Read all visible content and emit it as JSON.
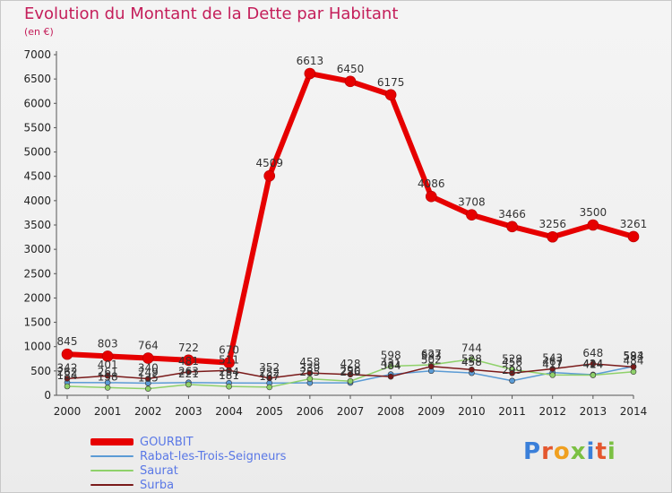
{
  "title": "Evolution du Montant de la Dette par Habitant",
  "unit": "(en €)",
  "logo": {
    "letters": [
      "P",
      "r",
      "o",
      "x",
      "i",
      "t",
      "i"
    ],
    "colors": [
      "#3a7fd9",
      "#e4572e",
      "#f0a020",
      "#7bc043",
      "#3a7fd9",
      "#e4572e",
      "#7bc043"
    ]
  },
  "chart_data": {
    "type": "line",
    "title": "Evolution du Montant de la Dette par Habitant",
    "ylabel": "(en €)",
    "x": [
      "2000",
      "2001",
      "2002",
      "2003",
      "2004",
      "2005",
      "2006",
      "2007",
      "2008",
      "2009",
      "2010",
      "2011",
      "2012",
      "2013",
      "2014"
    ],
    "ylim": [
      0,
      7000
    ],
    "yticks": [
      0,
      500,
      1000,
      1500,
      2000,
      2500,
      3000,
      3500,
      4000,
      4500,
      5000,
      5500,
      6000,
      6500,
      7000
    ],
    "grid": false,
    "legend": "bottom-left",
    "series": [
      {
        "name": "GOURBIT",
        "color": "#e60000",
        "width": 6,
        "marker": 6,
        "values": [
          845,
          803,
          764,
          722,
          670,
          4509,
          6613,
          6450,
          6175,
          4086,
          3708,
          3466,
          3256,
          3500,
          3261
        ],
        "labels": [
          "845",
          "803",
          "764",
          "722",
          "670",
          "4509",
          "6613",
          "6450",
          "6175",
          "4086",
          "3708",
          "3466",
          "3256",
          "3500",
          "3261"
        ]
      },
      {
        "name": "Rabat-les-Trois-Seigneurs",
        "color": "#5b9bd5",
        "width": 1.5,
        "marker": 3,
        "values": [
          262,
          261,
          249,
          263,
          254,
          252,
          255,
          256,
          431,
          502,
          458,
          299,
          467,
          424,
          594
        ],
        "labels": [
          "262",
          "261",
          "249",
          "263",
          "254",
          "252",
          "255",
          "256",
          "431",
          "502",
          "458",
          "299",
          "467",
          "424",
          "594"
        ]
      },
      {
        "name": "Saurat",
        "color": "#8fd16a",
        "width": 1.5,
        "marker": 3,
        "values": [
          184,
          158,
          135,
          221,
          181,
          167,
          339,
          290,
          598,
          627,
          744,
          529,
          417,
          414,
          484
        ],
        "labels": [
          "184",
          "158",
          "135",
          "221",
          "181",
          "167",
          "339",
          "290",
          "598",
          "627",
          "744",
          "529",
          "417",
          "414",
          "484"
        ]
      },
      {
        "name": "Surba",
        "color": "#7a1a1a",
        "width": 1.5,
        "marker": 3,
        "values": [
          342,
          401,
          340,
          481,
          511,
          352,
          458,
          428,
          384,
          593,
          528,
          456,
          543,
          648,
          583
        ],
        "labels": [
          "342",
          "401",
          "340",
          "481",
          "511",
          "352",
          "458",
          "428",
          "384",
          "593",
          "528",
          "456",
          "543",
          "648",
          "583"
        ]
      }
    ]
  }
}
